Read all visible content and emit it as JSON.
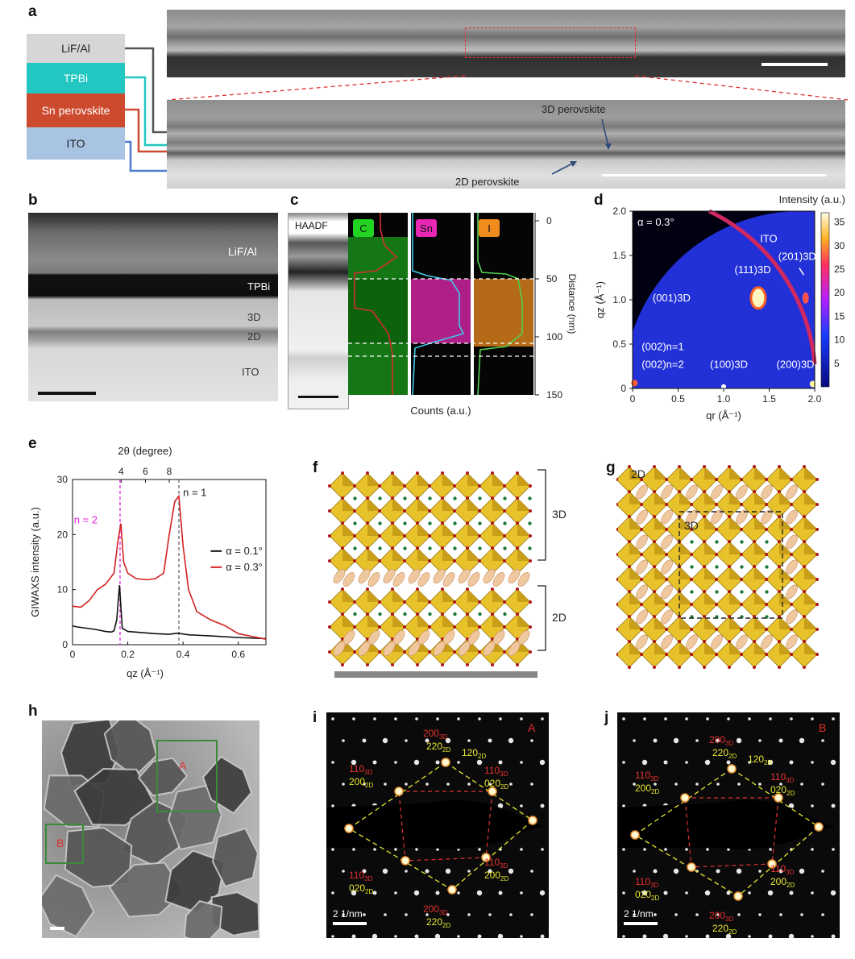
{
  "panels": {
    "a": "a",
    "b": "b",
    "c": "c",
    "d": "d",
    "e": "e",
    "f": "f",
    "g": "g",
    "h": "h",
    "i": "i",
    "j": "j"
  },
  "panel_a": {
    "layers": [
      {
        "label": "LiF/Al",
        "color": "#d6d6d6",
        "text": "#222"
      },
      {
        "label": "TPBi",
        "color": "#22c7c2",
        "text": "#fff"
      },
      {
        "label": "Sn perovskite",
        "color": "#cc4b2f",
        "text": "#fff"
      },
      {
        "label": "ITO",
        "color": "#a9c3e3",
        "text": "#222"
      }
    ],
    "annot_3d": "3D perovskite",
    "annot_2d": "2D perovskite"
  },
  "panel_b": {
    "labels": [
      "LiF/Al",
      "TPBi",
      "3D",
      "2D",
      "ITO"
    ]
  },
  "panel_c": {
    "haadf": "HAADF",
    "elements": [
      {
        "label": "C",
        "color": "#22d422"
      },
      {
        "label": "Sn",
        "color": "#e828b4"
      },
      {
        "label": "I",
        "color": "#f08c1e"
      }
    ],
    "xlabel": "Counts (a.u.)",
    "ylabel": "Distance (nm)",
    "yticks": [
      "0",
      "50",
      "100",
      "150"
    ]
  },
  "panel_d": {
    "title": "Intensity (a.u.)",
    "alpha": "α = 0.3°",
    "ito": "ITO",
    "peaks": [
      "(201)3D",
      "(111)3D",
      "(001)3D",
      "(002)n=1",
      "(002)n=2",
      "(100)3D",
      "(200)3D"
    ],
    "xticks": [
      "0",
      "0.5",
      "1.0",
      "1.5",
      "2.0"
    ],
    "yticks": [
      "0",
      "0.5",
      "1.0",
      "1.5",
      "2.0"
    ],
    "cbticks": [
      "5",
      "10",
      "15",
      "20",
      "25",
      "30",
      "35"
    ],
    "xlabel": "qr (Å⁻¹)",
    "ylabel": "qz (Å⁻¹)"
  },
  "panel_e": {
    "top_axis_label": "2θ (degree)",
    "top_ticks": [
      "4",
      "6",
      "8"
    ],
    "xticks": [
      "0",
      "0.2",
      "0.4",
      "0.6"
    ],
    "yticks": [
      "0",
      "10",
      "20",
      "30"
    ],
    "xlabel": "qz (Å⁻¹)",
    "ylabel": "GIWAXS intensity (a.u.)",
    "n2": "n = 2",
    "n1": "n = 1",
    "legend": [
      {
        "label": "α = 0.1°",
        "color": "#111111"
      },
      {
        "label": "α = 0.3°",
        "color": "#d42020"
      }
    ]
  },
  "chart_data": {
    "type": "line",
    "title": "",
    "xlabel": "qz (Å⁻¹)",
    "ylabel": "GIWAXS intensity (a.u.)",
    "xlim": [
      0,
      0.7
    ],
    "ylim": [
      0,
      30
    ],
    "series": [
      {
        "name": "α = 0.1°",
        "x": [
          0,
          0.02,
          0.05,
          0.08,
          0.1,
          0.12,
          0.14,
          0.15,
          0.16,
          0.17,
          0.18,
          0.2,
          0.25,
          0.3,
          0.35,
          0.38,
          0.42,
          0.5,
          0.6,
          0.7
        ],
        "values": [
          3.4,
          3.2,
          3.0,
          2.8,
          2.6,
          2.4,
          2.3,
          2.5,
          4.5,
          10.8,
          3.0,
          2.4,
          2.2,
          2.0,
          1.9,
          2.1,
          1.8,
          1.6,
          1.3,
          1.1
        ]
      },
      {
        "name": "α = 0.3°",
        "x": [
          0,
          0.03,
          0.06,
          0.09,
          0.12,
          0.15,
          0.165,
          0.175,
          0.185,
          0.2,
          0.23,
          0.27,
          0.3,
          0.33,
          0.35,
          0.37,
          0.385,
          0.4,
          0.42,
          0.45,
          0.5,
          0.55,
          0.6,
          0.65,
          0.7
        ],
        "values": [
          7,
          6.8,
          8,
          10,
          11,
          13,
          19,
          22,
          15,
          13,
          12,
          11.8,
          12,
          13,
          20,
          26,
          27,
          18,
          10,
          6,
          4.5,
          3.5,
          2,
          1.5,
          1
        ]
      }
    ]
  },
  "panel_f": {
    "label_3d": "3D",
    "label_2d": "2D"
  },
  "panel_g": {
    "label_2d": "2D",
    "label_3d": "3D"
  },
  "panel_h": {
    "markA": "A",
    "markB": "B"
  },
  "panel_i": {
    "corner": "A",
    "scale": "2 1/nm",
    "spots": [
      "200",
      "3D",
      "220",
      "2D",
      "120",
      "2D",
      "110",
      "3D",
      "200",
      "2D",
      "110",
      "3D",
      "020",
      "2D",
      "110",
      "3D",
      "020",
      "2D",
      "110",
      "3D",
      "200",
      "2D",
      "200",
      "3D",
      "220",
      "2D"
    ]
  },
  "panel_j": {
    "corner": "B",
    "scale": "2 1/nm",
    "spots": [
      "200",
      "3D",
      "220",
      "2D",
      "120",
      "2D",
      "110",
      "3D",
      "200",
      "2D",
      "110",
      "3D",
      "020",
      "2D",
      "110",
      "3D",
      "020",
      "2D",
      "110",
      "3D",
      "200",
      "2D",
      "200",
      "3D",
      "220",
      "2D"
    ]
  }
}
